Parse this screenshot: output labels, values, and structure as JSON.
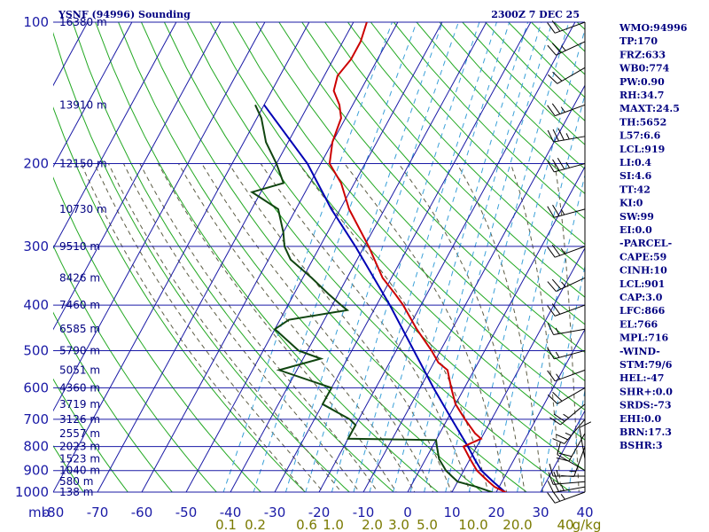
{
  "header": {
    "title": "YSNF (94996) Sounding",
    "time": "2300Z  7 DEC 25"
  },
  "chart_data": {
    "type": "skew-t",
    "title": "YSNF (94996) Sounding",
    "pressure_levels": [
      100,
      200,
      300,
      400,
      500,
      600,
      700,
      800,
      900,
      1000
    ],
    "temp_ticks": [
      -80,
      -70,
      -60,
      -50,
      -40,
      -30,
      -20,
      -10,
      0,
      10,
      20,
      30,
      40
    ],
    "pressure_unit_label": "mb",
    "height_labels": [
      {
        "p": 100,
        "label": "16380 m"
      },
      {
        "p": 150,
        "label": "13910 m"
      },
      {
        "p": 200,
        "label": "12150 m"
      },
      {
        "p": 250,
        "label": "10730 m"
      },
      {
        "p": 300,
        "label": "9510 m"
      },
      {
        "p": 350,
        "label": "8426 m"
      },
      {
        "p": 400,
        "label": "7460 m"
      },
      {
        "p": 450,
        "label": "6585 m"
      },
      {
        "p": 500,
        "label": "5790 m"
      },
      {
        "p": 550,
        "label": "5051 m"
      },
      {
        "p": 600,
        "label": "4360 m"
      },
      {
        "p": 650,
        "label": "3719 m"
      },
      {
        "p": 700,
        "label": "3126 m"
      },
      {
        "p": 750,
        "label": "2557 m"
      },
      {
        "p": 800,
        "label": "2023 m"
      },
      {
        "p": 850,
        "label": "1523 m"
      },
      {
        "p": 900,
        "label": "1040 m"
      },
      {
        "p": 950,
        "label": "580 m"
      },
      {
        "p": 1000,
        "label": "138 m"
      }
    ],
    "mixing_ratio_labels": [
      "0.1",
      "0.2",
      "0.6",
      "1.0",
      "2.0",
      "3.0",
      "5.0",
      "10.0",
      "20.0",
      "40",
      "g/kg"
    ],
    "temperature": [
      [
        1010,
        23
      ],
      [
        1000,
        22
      ],
      [
        975,
        19
      ],
      [
        950,
        17
      ],
      [
        925,
        15
      ],
      [
        900,
        13
      ],
      [
        850,
        10
      ],
      [
        800,
        7
      ],
      [
        770,
        10
      ],
      [
        750,
        8
      ],
      [
        700,
        4
      ],
      [
        650,
        0
      ],
      [
        600,
        -3
      ],
      [
        550,
        -6
      ],
      [
        530,
        -9
      ],
      [
        500,
        -12
      ],
      [
        450,
        -18
      ],
      [
        400,
        -24
      ],
      [
        380,
        -27
      ],
      [
        350,
        -32
      ],
      [
        300,
        -39
      ],
      [
        250,
        -48
      ],
      [
        220,
        -53
      ],
      [
        200,
        -58
      ],
      [
        180,
        -60
      ],
      [
        160,
        -61
      ],
      [
        150,
        -63
      ],
      [
        140,
        -66
      ],
      [
        130,
        -67
      ],
      [
        120,
        -66
      ],
      [
        110,
        -66
      ],
      [
        100,
        -67
      ]
    ],
    "dewpoint": [
      [
        1010,
        20
      ],
      [
        1000,
        19
      ],
      [
        975,
        15
      ],
      [
        950,
        10
      ],
      [
        925,
        8
      ],
      [
        900,
        6
      ],
      [
        850,
        3
      ],
      [
        800,
        1
      ],
      [
        775,
        0
      ],
      [
        770,
        -20
      ],
      [
        720,
        -20
      ],
      [
        700,
        -22
      ],
      [
        650,
        -30
      ],
      [
        600,
        -30
      ],
      [
        550,
        -44
      ],
      [
        520,
        -36
      ],
      [
        500,
        -42
      ],
      [
        450,
        -50
      ],
      [
        430,
        -48
      ],
      [
        410,
        -36
      ],
      [
        400,
        -38
      ],
      [
        380,
        -42
      ],
      [
        350,
        -48
      ],
      [
        320,
        -55
      ],
      [
        300,
        -58
      ],
      [
        280,
        -60
      ],
      [
        250,
        -64
      ],
      [
        230,
        -72
      ],
      [
        220,
        -66
      ],
      [
        200,
        -70
      ],
      [
        180,
        -75
      ],
      [
        160,
        -79
      ],
      [
        150,
        -82
      ]
    ],
    "parcel": [
      [
        1000,
        22
      ],
      [
        950,
        18
      ],
      [
        900,
        14
      ],
      [
        850,
        11
      ],
      [
        800,
        8
      ],
      [
        700,
        1
      ],
      [
        600,
        -7
      ],
      [
        500,
        -16
      ],
      [
        400,
        -27
      ],
      [
        300,
        -42
      ],
      [
        250,
        -52
      ],
      [
        200,
        -63
      ],
      [
        150,
        -80
      ]
    ],
    "wind_barbs": [
      {
        "p": 1000,
        "dir": 250,
        "spd": 25
      },
      {
        "p": 975,
        "dir": 260,
        "spd": 25
      },
      {
        "p": 950,
        "dir": 265,
        "spd": 20
      },
      {
        "p": 925,
        "dir": 270,
        "spd": 15
      },
      {
        "p": 900,
        "dir": 300,
        "spd": 10
      },
      {
        "p": 850,
        "dir": 350,
        "spd": 10
      },
      {
        "p": 800,
        "dir": 200,
        "spd": 15
      },
      {
        "p": 750,
        "dir": 210,
        "spd": 20
      },
      {
        "p": 700,
        "dir": 220,
        "spd": 25
      },
      {
        "p": 650,
        "dir": 230,
        "spd": 25
      },
      {
        "p": 600,
        "dir": 240,
        "spd": 20
      },
      {
        "p": 550,
        "dir": 250,
        "spd": 15
      },
      {
        "p": 500,
        "dir": 255,
        "spd": 15
      },
      {
        "p": 450,
        "dir": 260,
        "spd": 15
      },
      {
        "p": 400,
        "dir": 250,
        "spd": 20
      },
      {
        "p": 350,
        "dir": 245,
        "spd": 25
      },
      {
        "p": 300,
        "dir": 250,
        "spd": 25
      },
      {
        "p": 250,
        "dir": 255,
        "spd": 25
      },
      {
        "p": 200,
        "dir": 255,
        "spd": 35
      },
      {
        "p": 175,
        "dir": 260,
        "spd": 35
      },
      {
        "p": 150,
        "dir": 250,
        "spd": 25
      },
      {
        "p": 125,
        "dir": 240,
        "spd": 20
      },
      {
        "p": 110,
        "dir": 245,
        "spd": 25
      },
      {
        "p": 100,
        "dir": 250,
        "spd": 20
      }
    ]
  },
  "indices": [
    "WMO:94996",
    "TP:170",
    "FRZ:633",
    "WB0:774",
    "PW:0.90",
    "RH:34.7",
    "MAXT:24.5",
    "TH:5652",
    "L57:6.6",
    "LCL:919",
    "LI:0.4",
    "SI:4.6",
    "TT:42",
    "KI:0",
    "SW:99",
    "EI:0.0",
    "-PARCEL-",
    "CAPE:59",
    "CINH:10",
    "LCL:901",
    "CAP:3.0",
    "LFC:866",
    "EL:766",
    "MPL:716",
    "-WIND-",
    "STM:79/6",
    "HEL:-47",
    "SHR+:0.0",
    "SRDS:-73",
    "EHI:0.0",
    "BRN:17.3",
    "BSHR:3"
  ],
  "colors": {
    "isobar": "#1a1aa6",
    "isotherm": "#1a1aa6",
    "dry_adiabat": "#22a822",
    "moist_adiabat": "#5c5c44",
    "mixing_ratio": "#3aa0d8",
    "temperature": "#cc0000",
    "dewpoint": "#104510",
    "parcel": "#0000b4",
    "text": "#000080",
    "mixing_label": "#7a7a00"
  }
}
